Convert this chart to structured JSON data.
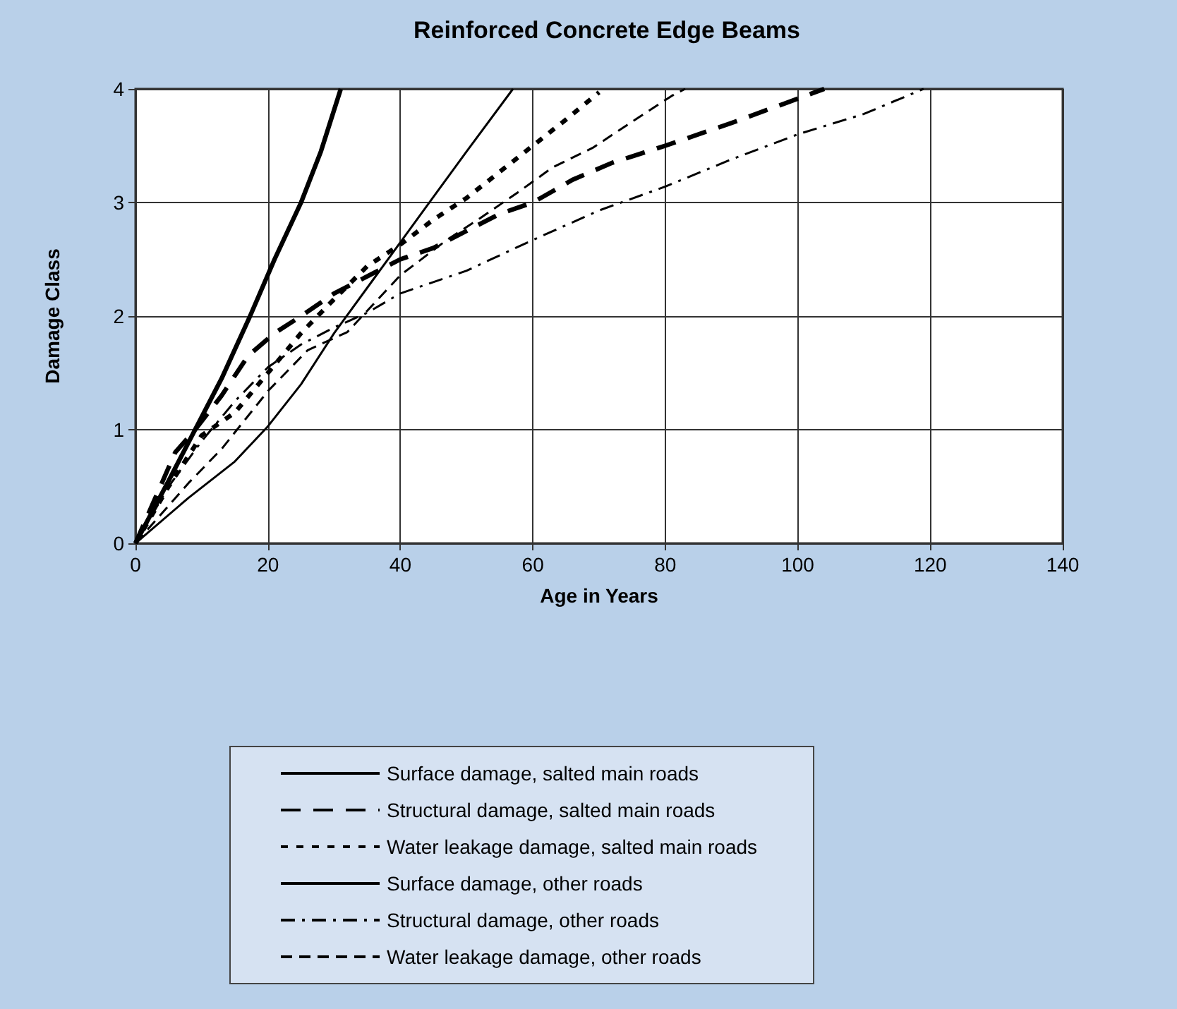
{
  "chart_data": {
    "type": "line",
    "title": "Reinforced Concrete Edge Beams",
    "xlabel": "Age in Years",
    "ylabel": "Damage Class",
    "xlim": [
      0,
      140
    ],
    "xticks": [
      0,
      20,
      40,
      60,
      80,
      100,
      120,
      140
    ],
    "ylim": [
      0,
      4
    ],
    "yticks": [
      0,
      1,
      2,
      3,
      4
    ],
    "grid": true,
    "legend": "bottom",
    "marker": "none",
    "series": [
      {
        "name": "Surface damage, salted main roads",
        "color": "#000000",
        "line_style": "solid",
        "x": [
          0,
          5,
          9,
          13,
          17.3,
          21,
          25,
          28,
          31
        ],
        "values": [
          0,
          0.55,
          1.0,
          1.45,
          2.0,
          2.5,
          3.0,
          3.45,
          4.0
        ]
      },
      {
        "name": "Structural damage, salted main roads",
        "color": "#000000",
        "line_style": "dashed",
        "x": [
          0,
          3,
          6,
          9,
          13,
          17,
          21,
          25,
          30,
          35,
          40,
          45,
          50,
          55,
          60,
          66,
          72,
          80,
          90,
          97,
          104
        ],
        "values": [
          0,
          0.4,
          0.8,
          1.0,
          1.3,
          1.65,
          1.85,
          2.0,
          2.2,
          2.35,
          2.5,
          2.6,
          2.75,
          2.9,
          3.0,
          3.2,
          3.35,
          3.5,
          3.7,
          3.85,
          4.0
        ]
      },
      {
        "name": "Water leakage damage, salted main roads",
        "color": "#000000",
        "line_style": "dotted",
        "x": [
          0,
          5,
          10,
          15,
          20,
          25,
          30,
          35,
          40,
          45,
          50,
          55,
          60,
          65,
          70
        ],
        "values": [
          0,
          0.5,
          0.95,
          1.15,
          1.5,
          1.85,
          2.15,
          2.44,
          2.63,
          2.85,
          3.04,
          3.27,
          3.5,
          3.73,
          3.97
        ]
      },
      {
        "name": "Surface damage, other roads",
        "color": "#000000",
        "line_style": "solid",
        "x": [
          0,
          8,
          15,
          20,
          25,
          30,
          35,
          40,
          45,
          50,
          57
        ],
        "values": [
          0,
          0.4,
          0.72,
          1.03,
          1.4,
          1.85,
          2.25,
          2.65,
          3.05,
          3.45,
          4.0
        ]
      },
      {
        "name": "Structural damage, other roads",
        "color": "#000000",
        "line_style": "dashdot",
        "x": [
          0,
          5,
          10,
          15,
          20,
          25,
          30,
          35,
          40,
          50,
          60,
          70,
          80,
          90,
          100,
          110,
          119
        ],
        "values": [
          0,
          0.5,
          0.9,
          1.25,
          1.55,
          1.75,
          1.9,
          2.03,
          2.2,
          2.4,
          2.67,
          2.93,
          3.14,
          3.38,
          3.6,
          3.78,
          4.0
        ]
      },
      {
        "name": "Water leakage damage, other roads",
        "color": "#000000",
        "line_style": "dashed",
        "x": [
          0,
          8,
          13,
          20,
          26,
          32,
          40,
          47,
          52,
          58,
          63,
          69,
          76,
          81,
          83
        ],
        "values": [
          0,
          0.53,
          0.83,
          1.34,
          1.7,
          1.86,
          2.36,
          2.67,
          2.86,
          3.1,
          3.31,
          3.48,
          3.75,
          3.94,
          4.0
        ]
      }
    ]
  }
}
